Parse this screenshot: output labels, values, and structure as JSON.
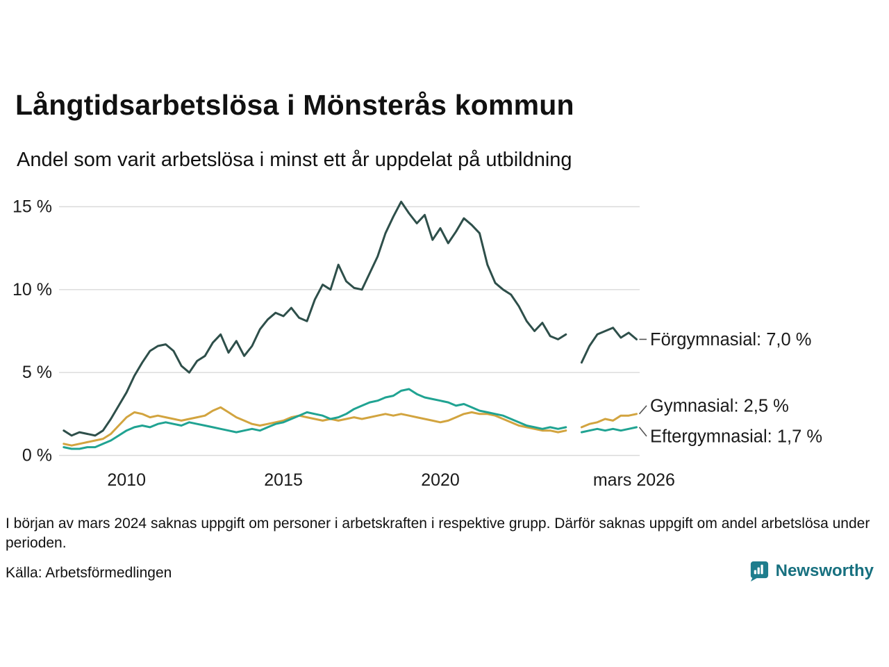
{
  "title": "Långtidsarbetslösa i Mönsterås kommun",
  "subtitle": "Andel som varit arbetslösa i minst ett år uppdelat på utbildning",
  "footnote": "I början av mars 2024 saknas uppgift om personer i arbetskraften i respektive grupp. Därför saknas uppgift om andel arbetslösa under perioden.",
  "source": "Källa: Arbetsförmedlingen",
  "brand": {
    "name": "Newsworthy",
    "color": "#17707f"
  },
  "chart_data": {
    "type": "line",
    "title": "Långtidsarbetslösa i Mönsterås kommun",
    "subtitle": "Andel som varit arbetslösa i minst ett år uppdelat på utbildning",
    "x_start": 2008.0,
    "x_step": 0.25,
    "xlim": [
      2007.85,
      2026.35
    ],
    "ylim": [
      0,
      15.8
    ],
    "grid": "horizontal",
    "note": "null values mark the missing-data gap around mars 2024",
    "x_ticks": [
      {
        "x": 2010,
        "label": "2010"
      },
      {
        "x": 2015,
        "label": "2015"
      },
      {
        "x": 2020,
        "label": "2020"
      },
      {
        "x": 2026.17,
        "label": "mars 2026"
      }
    ],
    "y_ticks": [
      0,
      5,
      10,
      15
    ],
    "y_tick_labels": [
      "0 %",
      "5 %",
      "10 %",
      "15 %"
    ],
    "series": [
      {
        "name": "Förgymnasial",
        "end_label": "Förgymnasial: 7,0 %",
        "end_value": "7,0 %",
        "color": "#2e4f4a",
        "values": [
          1.5,
          1.2,
          1.4,
          1.3,
          1.2,
          1.5,
          2.2,
          3.0,
          3.8,
          4.8,
          5.6,
          6.3,
          6.6,
          6.7,
          6.3,
          5.4,
          5.0,
          5.7,
          6.0,
          6.8,
          7.3,
          6.2,
          6.9,
          6.0,
          6.6,
          7.6,
          8.2,
          8.6,
          8.4,
          8.9,
          8.3,
          8.1,
          9.4,
          10.3,
          10.0,
          11.5,
          10.5,
          10.1,
          10.0,
          11.0,
          12.0,
          13.4,
          14.4,
          15.3,
          14.6,
          14.0,
          14.5,
          13.0,
          13.7,
          12.8,
          13.5,
          14.3,
          13.9,
          13.4,
          11.5,
          10.4,
          10.0,
          9.7,
          9.0,
          8.1,
          7.5,
          8.0,
          7.2,
          7.0,
          7.3,
          null,
          5.6,
          6.6,
          7.3,
          7.5,
          7.7,
          7.1,
          7.4,
          7.0
        ]
      },
      {
        "name": "Gymnasial",
        "end_label": "Gymnasial: 2,5 %",
        "end_value": "2,5 %",
        "color": "#d2a43f",
        "values": [
          0.7,
          0.6,
          0.7,
          0.8,
          0.9,
          1.0,
          1.3,
          1.8,
          2.3,
          2.6,
          2.5,
          2.3,
          2.4,
          2.3,
          2.2,
          2.1,
          2.2,
          2.3,
          2.4,
          2.7,
          2.9,
          2.6,
          2.3,
          2.1,
          1.9,
          1.8,
          1.9,
          2.0,
          2.1,
          2.3,
          2.4,
          2.3,
          2.2,
          2.1,
          2.2,
          2.1,
          2.2,
          2.3,
          2.2,
          2.3,
          2.4,
          2.5,
          2.4,
          2.5,
          2.4,
          2.3,
          2.2,
          2.1,
          2.0,
          2.1,
          2.3,
          2.5,
          2.6,
          2.5,
          2.5,
          2.4,
          2.2,
          2.0,
          1.8,
          1.7,
          1.6,
          1.5,
          1.5,
          1.4,
          1.5,
          null,
          1.7,
          1.9,
          2.0,
          2.2,
          2.1,
          2.4,
          2.4,
          2.5
        ]
      },
      {
        "name": "Eftergymnasial",
        "end_label": "Eftergymnasial: 1,7 %",
        "end_value": "1,7 %",
        "color": "#20a392",
        "values": [
          0.5,
          0.4,
          0.4,
          0.5,
          0.5,
          0.7,
          0.9,
          1.2,
          1.5,
          1.7,
          1.8,
          1.7,
          1.9,
          2.0,
          1.9,
          1.8,
          2.0,
          1.9,
          1.8,
          1.7,
          1.6,
          1.5,
          1.4,
          1.5,
          1.6,
          1.5,
          1.7,
          1.9,
          2.0,
          2.2,
          2.4,
          2.6,
          2.5,
          2.4,
          2.2,
          2.3,
          2.5,
          2.8,
          3.0,
          3.2,
          3.3,
          3.5,
          3.6,
          3.9,
          4.0,
          3.7,
          3.5,
          3.4,
          3.3,
          3.2,
          3.0,
          3.1,
          2.9,
          2.7,
          2.6,
          2.5,
          2.4,
          2.2,
          2.0,
          1.8,
          1.7,
          1.6,
          1.7,
          1.6,
          1.7,
          null,
          1.4,
          1.5,
          1.6,
          1.5,
          1.6,
          1.5,
          1.6,
          1.7
        ]
      }
    ]
  }
}
